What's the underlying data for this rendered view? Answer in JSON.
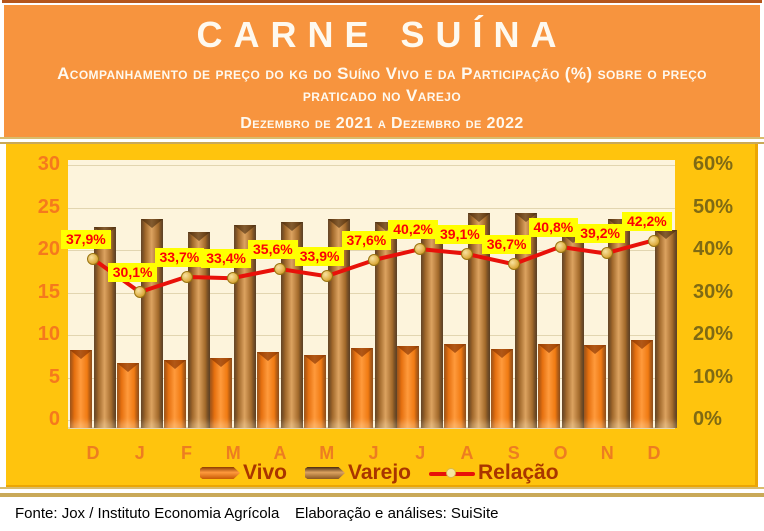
{
  "header": {
    "title": "CARNE SUÍNA",
    "subtitle": "Acompanhamento de preço do kg do Suíno Vivo e da Participação (%) sobre o preço praticado no Varejo",
    "period": "Dezembro de 2021 a Dezembro de 2022"
  },
  "chart_data": {
    "type": "bar",
    "categories": [
      "D",
      "J",
      "F",
      "M",
      "A",
      "M",
      "J",
      "J",
      "A",
      "S",
      "O",
      "N",
      "D"
    ],
    "series": [
      {
        "name": "Vivo",
        "type": "bar",
        "color": "#E8720C",
        "values": [
          8.2,
          6.7,
          7.1,
          7.3,
          8.0,
          7.6,
          8.5,
          8.7,
          9.0,
          8.4,
          8.9,
          8.8,
          9.4
        ]
      },
      {
        "name": "Varejo",
        "type": "bar",
        "color": "#B0763A",
        "values": [
          22.7,
          23.7,
          22.1,
          23.0,
          23.3,
          23.6,
          23.3,
          22.4,
          24.3,
          24.3,
          21.9,
          23.7,
          22.4
        ]
      },
      {
        "name": "Relação",
        "type": "line",
        "color": "#E81109",
        "values": [
          37.9,
          30.1,
          33.7,
          33.4,
          35.6,
          33.9,
          37.6,
          40.2,
          39.1,
          36.7,
          40.8,
          39.2,
          42.2
        ],
        "labels": [
          "37,9%",
          "30,1%",
          "33,7%",
          "33,4%",
          "35,6%",
          "33,9%",
          "37,6%",
          "40,2%",
          "39,1%",
          "36,7%",
          "40,8%",
          "39,2%",
          "42,2%"
        ]
      }
    ],
    "left_axis": {
      "min": 0,
      "max": 30,
      "step": 5,
      "ticks": [
        "30",
        "25",
        "20",
        "15",
        "10",
        "5",
        "0"
      ]
    },
    "right_axis": {
      "min": 0,
      "max": 60,
      "step": 10,
      "ticks": [
        "60%",
        "50%",
        "40%",
        "30%",
        "20%",
        "10%",
        "0%"
      ]
    },
    "legend": [
      "Vivo",
      "Varejo",
      "Relação"
    ],
    "grid": true,
    "legend_position": "bottom",
    "colors": {
      "panel": "#FFC40D",
      "plot": "#FDF4DC",
      "header": "#F7943E",
      "label_bg": "#FFFF00",
      "label_text": "#FB0007",
      "left_tick": "#F5791D",
      "right_tick": "#7F6A14",
      "month": "#ED7D21"
    }
  },
  "footer": {
    "source": "Fonte: Jox / Instituto Economia Agrícola",
    "elaboration": "Elaboração e análises: SuiSite"
  }
}
